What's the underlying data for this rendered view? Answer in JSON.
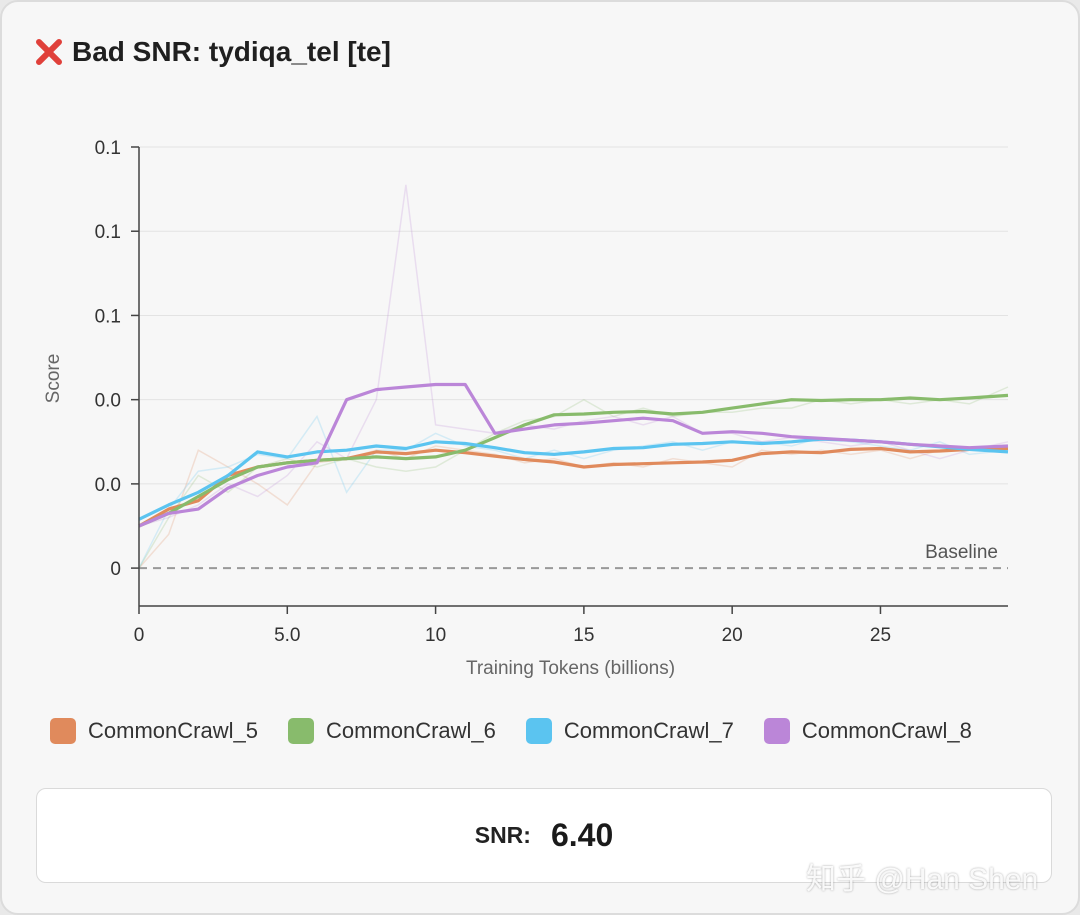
{
  "header": {
    "title": "Bad SNR: tydiqa_tel [te]",
    "icon": "cross-mark-icon",
    "icon_color": "#e0403a"
  },
  "chart_data": {
    "type": "line",
    "title": "Bad SNR: tydiqa_tel [te]",
    "xlabel": "Training Tokens (billions)",
    "ylabel": "Score",
    "x_ticks": [
      "0",
      "5.0",
      "10",
      "15",
      "20",
      "25"
    ],
    "y_ticks": [
      "0",
      "0.0",
      "0.0",
      "0.1",
      "0.1",
      "0.1"
    ],
    "xlim": [
      0,
      29.3
    ],
    "ylim": [
      -0.045,
      0.5
    ],
    "grid": "horizontal",
    "legend_position": "bottom",
    "baseline": {
      "label": "Baseline",
      "value": 0
    },
    "x": [
      0,
      1,
      2,
      3,
      4,
      5,
      6,
      7,
      8,
      9,
      10,
      11,
      12,
      13,
      14,
      15,
      16,
      17,
      18,
      19,
      20,
      21,
      22,
      23,
      24,
      25,
      26,
      27,
      28,
      29.3
    ],
    "series": [
      {
        "name": "CommonCrawl_5",
        "color": "#e08a5c",
        "values": [
          0.05,
          0.07,
          0.08,
          0.11,
          0.12,
          0.125,
          0.128,
          0.13,
          0.138,
          0.136,
          0.14,
          0.137,
          0.133,
          0.129,
          0.126,
          0.12,
          0.123,
          0.124,
          0.125,
          0.126,
          0.128,
          0.136,
          0.138,
          0.137,
          0.141,
          0.142,
          0.138,
          0.139,
          0.141,
          0.142
        ]
      },
      {
        "name": "CommonCrawl_6",
        "color": "#88bb6c",
        "values": [
          0.05,
          0.065,
          0.085,
          0.105,
          0.12,
          0.125,
          0.128,
          0.13,
          0.132,
          0.13,
          0.132,
          0.14,
          0.155,
          0.17,
          0.182,
          0.183,
          0.185,
          0.186,
          0.183,
          0.185,
          0.19,
          0.195,
          0.2,
          0.199,
          0.2,
          0.2,
          0.202,
          0.2,
          0.202,
          0.205
        ]
      },
      {
        "name": "CommonCrawl_7",
        "color": "#5bc4f0",
        "values": [
          0.058,
          0.075,
          0.09,
          0.11,
          0.138,
          0.132,
          0.138,
          0.14,
          0.145,
          0.142,
          0.15,
          0.148,
          0.143,
          0.137,
          0.135,
          0.138,
          0.142,
          0.143,
          0.147,
          0.148,
          0.15,
          0.148,
          0.15,
          0.153,
          0.152,
          0.15,
          0.147,
          0.144,
          0.141,
          0.138
        ]
      },
      {
        "name": "CommonCrawl_8",
        "color": "#bb86d8",
        "values": [
          0.05,
          0.065,
          0.07,
          0.095,
          0.11,
          0.12,
          0.125,
          0.2,
          0.212,
          0.215,
          0.218,
          0.218,
          0.16,
          0.165,
          0.17,
          0.172,
          0.175,
          0.178,
          0.175,
          0.16,
          0.162,
          0.16,
          0.156,
          0.154,
          0.152,
          0.15,
          0.147,
          0.145,
          0.143,
          0.145
        ]
      }
    ],
    "raw_series": [
      {
        "name": "CommonCrawl_5",
        "values": [
          0.0,
          0.04,
          0.14,
          0.12,
          0.1,
          0.075,
          0.125,
          0.13,
          0.14,
          0.13,
          0.145,
          0.14,
          0.135,
          0.125,
          0.13,
          0.12,
          0.125,
          0.12,
          0.13,
          0.125,
          0.12,
          0.14,
          0.135,
          0.14,
          0.135,
          0.14,
          0.13,
          0.14,
          0.14,
          0.145
        ]
      },
      {
        "name": "CommonCrawl_6",
        "values": [
          0.0,
          0.06,
          0.11,
          0.09,
          0.12,
          0.13,
          0.12,
          0.13,
          0.12,
          0.115,
          0.12,
          0.14,
          0.16,
          0.175,
          0.18,
          0.2,
          0.18,
          0.19,
          0.18,
          0.185,
          0.185,
          0.19,
          0.19,
          0.2,
          0.195,
          0.2,
          0.195,
          0.2,
          0.195,
          0.215
        ]
      },
      {
        "name": "CommonCrawl_7",
        "values": [
          0.0,
          0.07,
          0.115,
          0.12,
          0.135,
          0.13,
          0.18,
          0.09,
          0.14,
          0.14,
          0.16,
          0.145,
          0.14,
          0.13,
          0.14,
          0.13,
          0.14,
          0.145,
          0.15,
          0.14,
          0.15,
          0.15,
          0.145,
          0.155,
          0.15,
          0.145,
          0.14,
          0.15,
          0.135,
          0.14
        ]
      },
      {
        "name": "CommonCrawl_8",
        "values": [
          0.05,
          0.06,
          0.075,
          0.1,
          0.085,
          0.11,
          0.15,
          0.13,
          0.2,
          0.455,
          0.17,
          0.165,
          0.16,
          0.17,
          0.165,
          0.175,
          0.18,
          0.17,
          0.18,
          0.16,
          0.16,
          0.15,
          0.155,
          0.15,
          0.145,
          0.15,
          0.14,
          0.13,
          0.14,
          0.15
        ]
      }
    ]
  },
  "legend": [
    {
      "label": "CommonCrawl_5",
      "color": "#e08a5c"
    },
    {
      "label": "CommonCrawl_6",
      "color": "#88bb6c"
    },
    {
      "label": "CommonCrawl_7",
      "color": "#5bc4f0"
    },
    {
      "label": "CommonCrawl_8",
      "color": "#bb86d8"
    }
  ],
  "snr": {
    "label": "SNR:",
    "value": "6.40"
  },
  "watermark": "知乎 @Han Shen"
}
